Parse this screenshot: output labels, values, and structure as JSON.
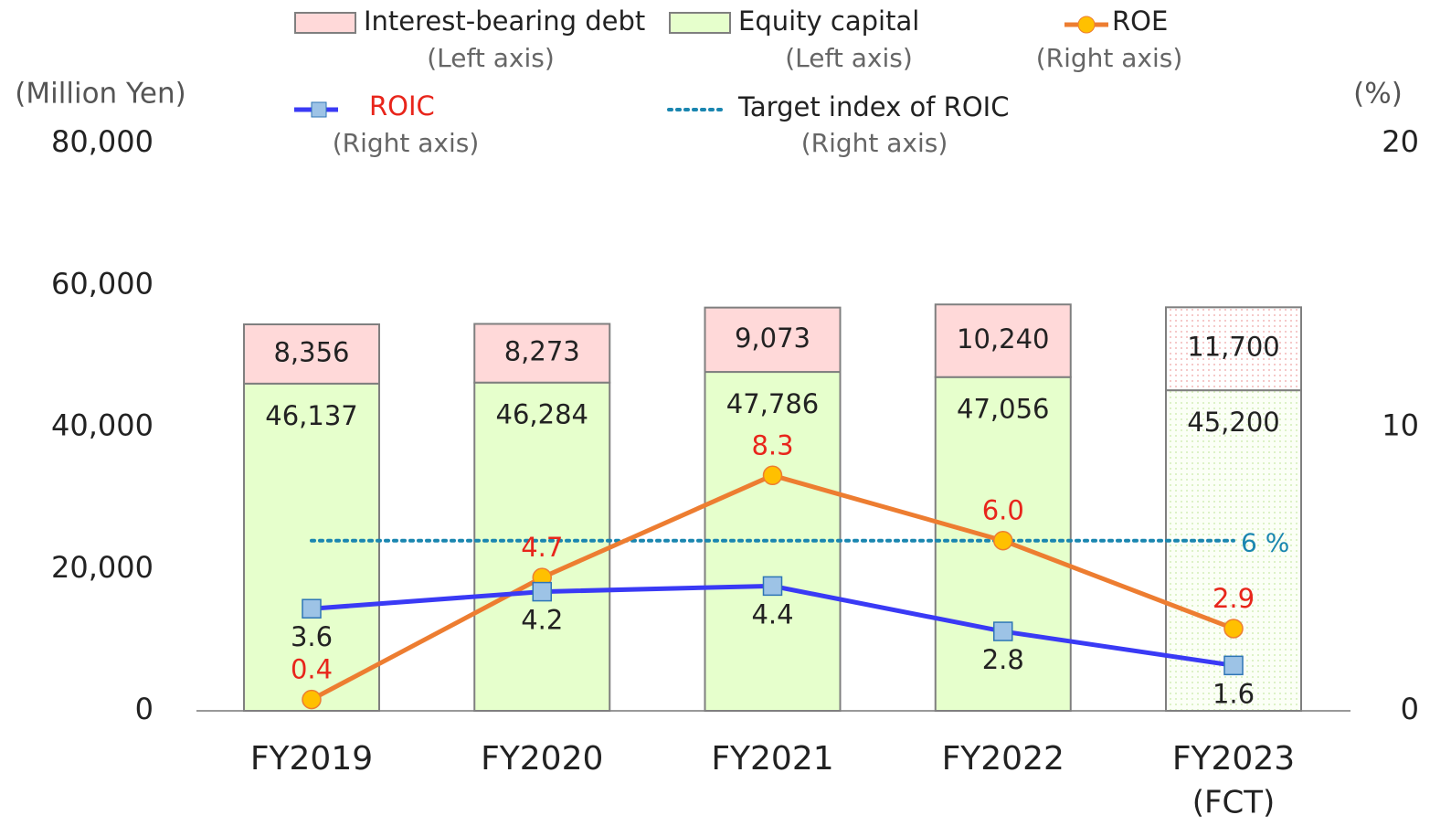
{
  "chart_data": {
    "type": "bar",
    "y_label": "(Million Yen)",
    "y2_label": "(%)",
    "categories": [
      "FY2019",
      "FY2020",
      "FY2021",
      "FY2022",
      "FY2023"
    ],
    "category_sublabels": [
      null,
      null,
      null,
      null,
      "(FCT)"
    ],
    "ylim": [
      0,
      80000
    ],
    "yticks": [
      0,
      {
        "value": 20000,
        "label": "20,000"
      },
      {
        "value": 40000,
        "label": "40,000"
      },
      {
        "value": 60000,
        "label": "60,000"
      },
      {
        "value": 80000,
        "label": "80,000"
      }
    ],
    "y2lim": [
      0,
      20
    ],
    "y2ticks": [
      0,
      10,
      20
    ],
    "series": [
      {
        "name": "Interest-bearing debt",
        "note": "(Left axis)",
        "type": "bar",
        "color": "#ffd9d9",
        "values": [
          8356,
          8273,
          9073,
          10240,
          11700
        ],
        "value_labels": [
          "8,356",
          "8,273",
          "9,073",
          "10,240",
          "11,700"
        ]
      },
      {
        "name": "Equity capital",
        "note": "(Left axis)",
        "type": "bar",
        "color": "#e6ffcc",
        "values": [
          46137,
          46284,
          47786,
          47056,
          45200
        ],
        "value_labels": [
          "46,137",
          "46,284",
          "47,786",
          "47,056",
          "45,200"
        ]
      },
      {
        "name": "ROE",
        "note": "(Right axis)",
        "type": "line",
        "axis": "y2",
        "color": "#ed7d31",
        "marker_color": "#ffc000",
        "label_color": "#e8251b",
        "values": [
          0.4,
          4.7,
          8.3,
          6.0,
          2.9
        ],
        "value_labels": [
          "0.4",
          "4.7",
          "8.3",
          "6.0",
          "2.9"
        ]
      },
      {
        "name": "ROIC",
        "note": "(Right axis)",
        "type": "line",
        "axis": "y2",
        "color": "#3a3af5",
        "marker_color": "#9dc3e6",
        "label_color": "#222222",
        "legend_color": "#e8251b",
        "values": [
          3.6,
          4.2,
          4.4,
          2.8,
          1.6
        ]
      }
    ],
    "target": {
      "name": "Target index of ROIC",
      "note": "(Right axis)",
      "value": 6,
      "label": "6 %",
      "color": "#1a86b0"
    }
  }
}
